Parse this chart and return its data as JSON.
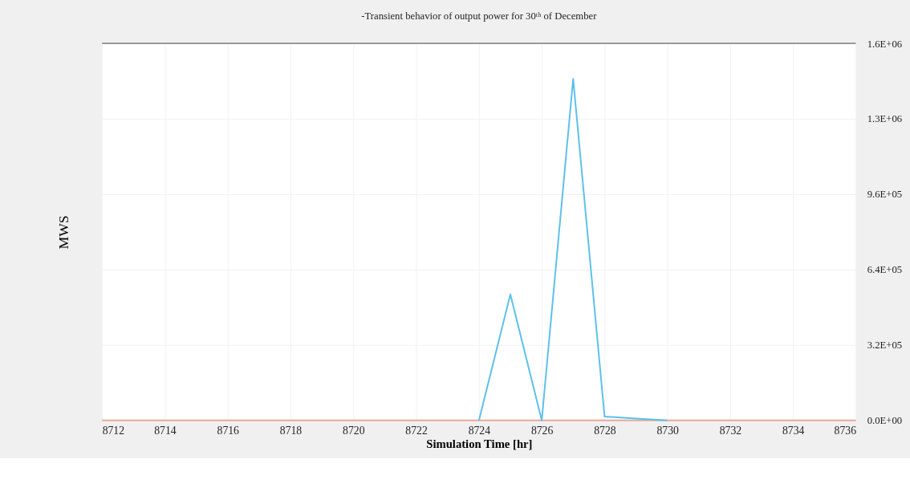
{
  "chart_data": {
    "type": "line",
    "title": "-Transient behavior of output power for 30ᵗʰ of December",
    "xlabel": "Simulation Time [hr]",
    "ylabel": "MWS",
    "series": [
      {
        "color": "#e8a898",
        "x": [
          8712,
          8736
        ],
        "values": [
          0,
          0
        ]
      },
      {
        "color": "#5bc0eb",
        "x": [
          8724,
          8725,
          8726,
          8727,
          8728,
          8729,
          8730
        ],
        "values": [
          0,
          535000,
          0,
          1450000,
          16000,
          8000,
          0
        ]
      }
    ],
    "xlim": [
      8712,
      8736
    ],
    "xticks": [
      8712,
      8714,
      8716,
      8718,
      8720,
      8722,
      8724,
      8726,
      8728,
      8730,
      8732,
      8734,
      8736
    ],
    "ylim": [
      0,
      1600000
    ],
    "yticks": [
      {
        "value": 0,
        "label": "0.0E+00"
      },
      {
        "value": 320000,
        "label": "3.2E+05"
      },
      {
        "value": 640000,
        "label": "6.4E+05"
      },
      {
        "value": 960000,
        "label": "9.6E+05"
      },
      {
        "value": 1280000,
        "label": "1.3E+06"
      },
      {
        "value": 1600000,
        "label": "1.6E+06"
      }
    ],
    "grid": true,
    "marker": "none",
    "line_style": "solid"
  }
}
